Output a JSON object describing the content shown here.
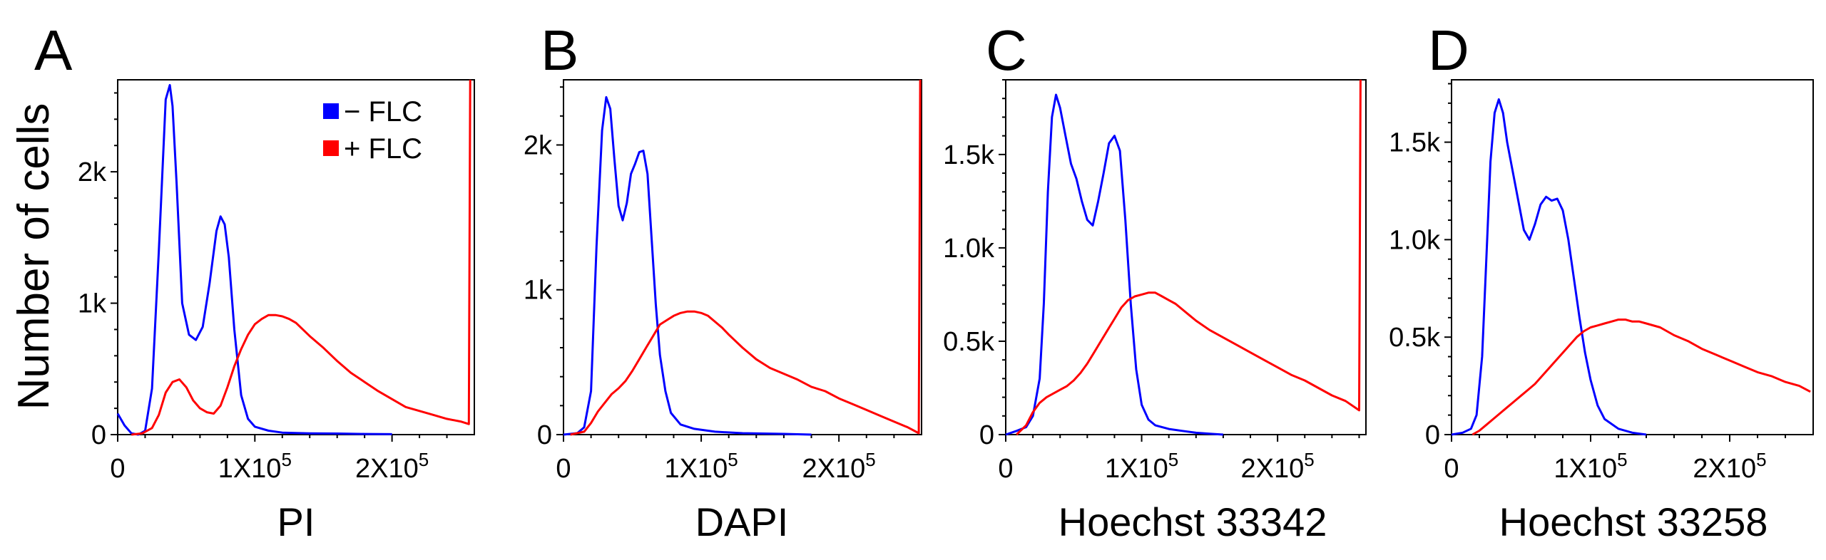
{
  "figure": {
    "ylabel": "Number of cells",
    "legend": [
      {
        "label": "− FLC",
        "color": "#0000ff"
      },
      {
        "label": "+ FLC",
        "color": "#ff0000"
      }
    ]
  },
  "chart_data": [
    {
      "panel": "A",
      "type": "line",
      "title": "",
      "xlabel": "PI",
      "ylabel": "Number of cells",
      "xlim": [
        0,
        260000
      ],
      "ylim": [
        0,
        2700
      ],
      "xticks": [
        {
          "value": 0,
          "label": "0"
        },
        {
          "value": 100000,
          "label": "1X10",
          "exp": "5"
        },
        {
          "value": 200000,
          "label": "2X10",
          "exp": "5"
        }
      ],
      "yticks": [
        {
          "value": 0,
          "label": "0"
        },
        {
          "value": 1000,
          "label": "1k"
        },
        {
          "value": 2000,
          "label": "2k"
        }
      ],
      "series": [
        {
          "name": "− FLC",
          "color": "#0000ff",
          "x": [
            0,
            5000,
            10000,
            15000,
            20000,
            25000,
            30000,
            35000,
            38000,
            40000,
            43000,
            47000,
            52000,
            57000,
            62000,
            67000,
            72000,
            75000,
            78000,
            81000,
            85000,
            90000,
            95000,
            100000,
            110000,
            120000,
            140000,
            160000,
            180000,
            200000
          ],
          "y": [
            160,
            70,
            10,
            0,
            30,
            350,
            1400,
            2550,
            2660,
            2500,
            1900,
            1000,
            760,
            720,
            820,
            1150,
            1550,
            1660,
            1600,
            1350,
            800,
            300,
            120,
            60,
            30,
            15,
            10,
            8,
            5,
            3
          ]
        },
        {
          "name": "+ FLC",
          "color": "#ff0000",
          "x": [
            10000,
            18000,
            25000,
            30000,
            35000,
            40000,
            45000,
            50000,
            55000,
            60000,
            65000,
            70000,
            75000,
            80000,
            85000,
            90000,
            95000,
            100000,
            105000,
            110000,
            115000,
            120000,
            125000,
            130000,
            135000,
            140000,
            150000,
            160000,
            170000,
            180000,
            190000,
            200000,
            210000,
            220000,
            230000,
            240000,
            250000,
            256000,
            257000
          ],
          "y": [
            0,
            10,
            50,
            150,
            320,
            400,
            420,
            360,
            260,
            200,
            170,
            160,
            220,
            360,
            520,
            650,
            760,
            840,
            880,
            910,
            910,
            900,
            880,
            850,
            800,
            750,
            660,
            560,
            470,
            400,
            330,
            270,
            210,
            180,
            150,
            120,
            100,
            80,
            2700
          ]
        }
      ]
    },
    {
      "panel": "B",
      "type": "line",
      "title": "",
      "xlabel": "DAPI",
      "ylabel": "",
      "xlim": [
        0,
        260000
      ],
      "ylim": [
        0,
        2450
      ],
      "xticks": [
        {
          "value": 0,
          "label": "0"
        },
        {
          "value": 100000,
          "label": "1X10",
          "exp": "5"
        },
        {
          "value": 200000,
          "label": "2X10",
          "exp": "5"
        }
      ],
      "yticks": [
        {
          "value": 0,
          "label": "0"
        },
        {
          "value": 1000,
          "label": "1k"
        },
        {
          "value": 2000,
          "label": "2k"
        }
      ],
      "series": [
        {
          "name": "− FLC",
          "color": "#0000ff",
          "x": [
            0,
            10000,
            15000,
            20000,
            24000,
            28000,
            31000,
            34000,
            37000,
            40000,
            43000,
            46000,
            49000,
            52000,
            55000,
            58000,
            61000,
            64000,
            67000,
            70000,
            74000,
            78000,
            85000,
            95000,
            110000,
            130000,
            160000,
            180000
          ],
          "y": [
            0,
            10,
            50,
            300,
            1300,
            2100,
            2330,
            2250,
            1900,
            1580,
            1480,
            1600,
            1800,
            1870,
            1950,
            1960,
            1800,
            1350,
            900,
            550,
            300,
            150,
            70,
            40,
            20,
            10,
            5,
            0
          ]
        },
        {
          "name": "+ FLC",
          "color": "#ff0000",
          "x": [
            5000,
            15000,
            20000,
            25000,
            30000,
            35000,
            40000,
            45000,
            50000,
            55000,
            60000,
            65000,
            70000,
            75000,
            80000,
            85000,
            90000,
            95000,
            100000,
            105000,
            110000,
            115000,
            120000,
            130000,
            140000,
            150000,
            160000,
            170000,
            180000,
            190000,
            200000,
            210000,
            220000,
            230000,
            240000,
            250000,
            258000,
            259000
          ],
          "y": [
            0,
            20,
            80,
            160,
            220,
            280,
            320,
            370,
            440,
            520,
            600,
            680,
            760,
            790,
            820,
            840,
            850,
            850,
            840,
            820,
            780,
            740,
            690,
            600,
            520,
            460,
            420,
            380,
            330,
            300,
            250,
            210,
            170,
            130,
            90,
            50,
            10,
            2450
          ]
        }
      ]
    },
    {
      "panel": "C",
      "type": "line",
      "title": "",
      "xlabel": "Hoechst 33342",
      "ylabel": "",
      "xlim": [
        0,
        265000
      ],
      "ylim": [
        0,
        1900
      ],
      "xticks": [
        {
          "value": 0,
          "label": "0"
        },
        {
          "value": 100000,
          "label": "1X10",
          "exp": "5"
        },
        {
          "value": 200000,
          "label": "2X10",
          "exp": "5"
        }
      ],
      "yticks": [
        {
          "value": 0,
          "label": "0"
        },
        {
          "value": 500,
          "label": "0.5k"
        },
        {
          "value": 1000,
          "label": "1.0k"
        },
        {
          "value": 1500,
          "label": "1.5k"
        }
      ],
      "series": [
        {
          "name": "− FLC",
          "color": "#0000ff",
          "x": [
            0,
            8000,
            15000,
            20000,
            25000,
            28000,
            31000,
            34000,
            37000,
            40000,
            44000,
            48000,
            52000,
            56000,
            60000,
            64000,
            68000,
            72000,
            76000,
            80000,
            84000,
            88000,
            92000,
            96000,
            100000,
            105000,
            110000,
            120000,
            130000,
            140000,
            150000,
            160000
          ],
          "y": [
            0,
            20,
            40,
            100,
            300,
            700,
            1300,
            1700,
            1820,
            1750,
            1600,
            1450,
            1370,
            1250,
            1150,
            1120,
            1250,
            1400,
            1560,
            1600,
            1520,
            1150,
            700,
            350,
            160,
            80,
            50,
            30,
            20,
            10,
            5,
            0
          ]
        },
        {
          "name": "+ FLC",
          "color": "#ff0000",
          "x": [
            8000,
            15000,
            20000,
            25000,
            30000,
            35000,
            40000,
            45000,
            50000,
            55000,
            60000,
            65000,
            70000,
            75000,
            80000,
            85000,
            90000,
            95000,
            100000,
            105000,
            110000,
            115000,
            120000,
            125000,
            130000,
            135000,
            140000,
            150000,
            160000,
            170000,
            180000,
            190000,
            200000,
            210000,
            220000,
            230000,
            240000,
            250000,
            260000,
            261000
          ],
          "y": [
            0,
            50,
            120,
            170,
            200,
            220,
            240,
            260,
            290,
            330,
            380,
            440,
            500,
            560,
            620,
            680,
            720,
            740,
            750,
            760,
            760,
            740,
            720,
            700,
            670,
            640,
            610,
            560,
            520,
            480,
            440,
            400,
            360,
            320,
            290,
            250,
            210,
            180,
            130,
            1900
          ]
        }
      ]
    },
    {
      "panel": "D",
      "type": "line",
      "title": "",
      "xlabel": "Hoechst 33258",
      "ylabel": "",
      "xlim": [
        0,
        260000
      ],
      "ylim": [
        0,
        1820
      ],
      "xticks": [
        {
          "value": 0,
          "label": "0"
        },
        {
          "value": 100000,
          "label": "1X10",
          "exp": "5"
        },
        {
          "value": 200000,
          "label": "2X10",
          "exp": "5"
        }
      ],
      "yticks": [
        {
          "value": 0,
          "label": "0"
        },
        {
          "value": 500,
          "label": "0.5k"
        },
        {
          "value": 1000,
          "label": "1.0k"
        },
        {
          "value": 1500,
          "label": "1.5k"
        }
      ],
      "series": [
        {
          "name": "− FLC",
          "color": "#0000ff",
          "x": [
            0,
            8000,
            14000,
            18000,
            22000,
            25000,
            28000,
            31000,
            34000,
            37000,
            40000,
            44000,
            48000,
            52000,
            56000,
            60000,
            64000,
            68000,
            72000,
            76000,
            80000,
            84000,
            88000,
            92000,
            96000,
            100000,
            105000,
            110000,
            120000,
            130000,
            140000
          ],
          "y": [
            0,
            10,
            30,
            100,
            400,
            900,
            1400,
            1650,
            1720,
            1650,
            1500,
            1350,
            1200,
            1050,
            1000,
            1080,
            1180,
            1220,
            1200,
            1210,
            1150,
            1000,
            800,
            600,
            420,
            280,
            150,
            80,
            30,
            10,
            0
          ]
        },
        {
          "name": "+ FLC",
          "color": "#ff0000",
          "x": [
            15000,
            20000,
            25000,
            30000,
            35000,
            40000,
            45000,
            50000,
            55000,
            60000,
            65000,
            70000,
            75000,
            80000,
            85000,
            90000,
            95000,
            100000,
            105000,
            110000,
            115000,
            120000,
            125000,
            130000,
            135000,
            140000,
            150000,
            160000,
            170000,
            180000,
            190000,
            200000,
            210000,
            220000,
            230000,
            240000,
            250000,
            258000
          ],
          "y": [
            0,
            20,
            50,
            80,
            110,
            140,
            170,
            200,
            230,
            260,
            300,
            340,
            380,
            420,
            460,
            500,
            530,
            550,
            560,
            570,
            580,
            590,
            590,
            580,
            580,
            570,
            550,
            510,
            480,
            440,
            410,
            380,
            350,
            320,
            300,
            270,
            250,
            220
          ]
        }
      ]
    }
  ]
}
